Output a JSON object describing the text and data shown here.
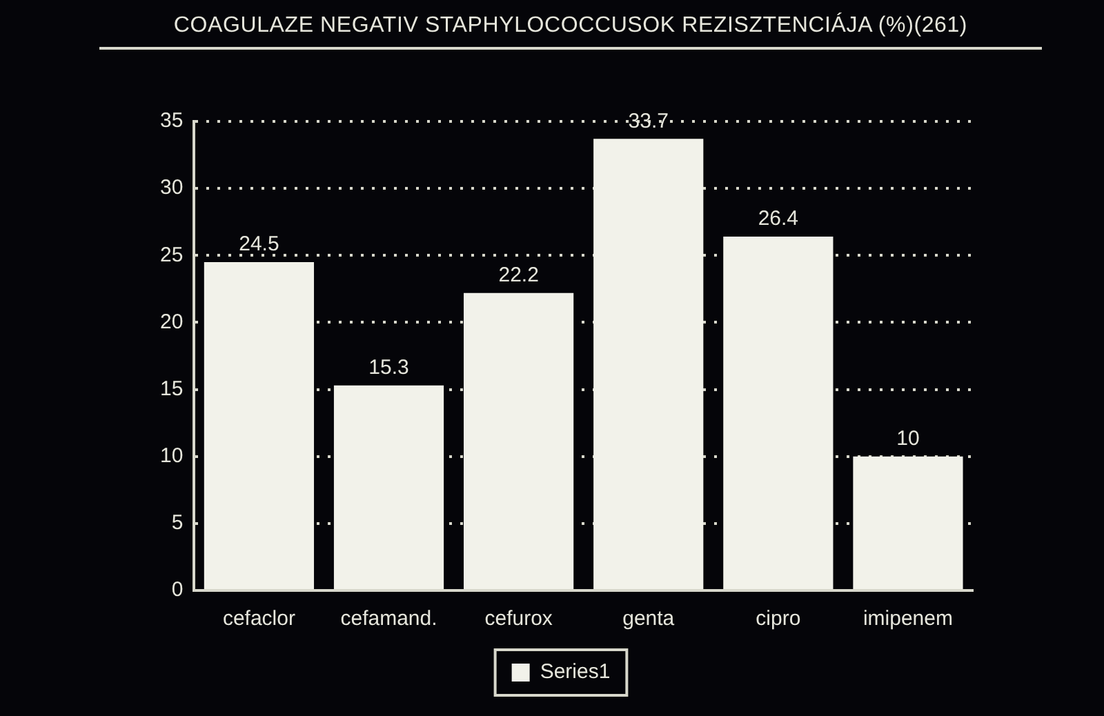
{
  "chart_data": {
    "type": "bar",
    "title": "COAGULAZE NEGATIV STAPHYLOCOCCUSOK REZISZTENCIÁJA (%)(261)",
    "categories": [
      "cefaclor",
      "cefamand.",
      "cefurox",
      "genta",
      "cipro",
      "imipenem"
    ],
    "series": [
      {
        "name": "Series1",
        "color": "#f2f2ea",
        "values": [
          24.5,
          15.3,
          22.2,
          33.7,
          26.4,
          10
        ]
      }
    ],
    "ylim": [
      0,
      35
    ],
    "yticks": [
      0,
      5,
      10,
      15,
      20,
      25,
      30,
      35
    ],
    "grid": "y",
    "legend": "bottom",
    "data_labels": true
  }
}
